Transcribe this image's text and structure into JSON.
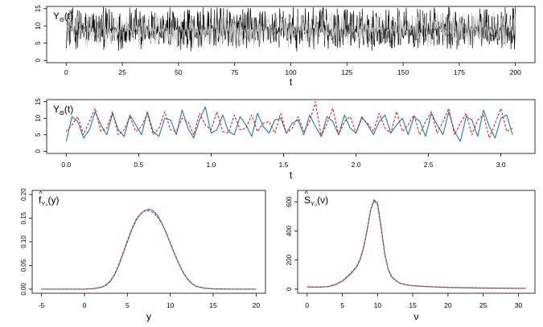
{
  "figure": {
    "panels": [
      "top",
      "middle",
      "bottom-left",
      "bottom-right"
    ]
  },
  "chart_data": [
    {
      "id": "top",
      "type": "line",
      "title_main": "Y",
      "title_sub": "Θ",
      "title_tail": "(t)",
      "xlabel": "t",
      "xlim": [
        0,
        200
      ],
      "ylim": [
        0,
        15
      ],
      "xticks": [
        0,
        25,
        50,
        75,
        100,
        125,
        150,
        175,
        200
      ],
      "yticks": [
        0,
        5,
        10,
        15
      ],
      "series": [
        {
          "color": "#000000",
          "envelope": {
            "center": 9.1,
            "low": 2.5,
            "high": 15.5
          }
        },
        {
          "color": "#c0c0c0",
          "envelope": {
            "center": 9.0,
            "low": 3.3,
            "high": 14.0
          }
        }
      ]
    },
    {
      "id": "middle",
      "type": "line",
      "title_main": "Y",
      "title_sub": "Θ",
      "title_tail": "(t)",
      "xlabel": "t",
      "xlim": [
        0,
        3.1
      ],
      "ylim": [
        0,
        15
      ],
      "xticks": [
        0.0,
        0.5,
        1.0,
        1.5,
        2.0,
        2.5,
        3.0
      ],
      "xtick_labels": [
        "0.0",
        "0.5",
        "1.0",
        "1.5",
        "2.0",
        "2.5",
        "3.0"
      ],
      "yticks": [
        0,
        5,
        10,
        15
      ],
      "series": [
        {
          "color": "#1f77b4",
          "style": "solid",
          "x": [
            0.0,
            0.04,
            0.08,
            0.12,
            0.16,
            0.2,
            0.24,
            0.28,
            0.32,
            0.36,
            0.4,
            0.44,
            0.48,
            0.52,
            0.56,
            0.6,
            0.64,
            0.68,
            0.72,
            0.76,
            0.8,
            0.84,
            0.88,
            0.92,
            0.96,
            1.0,
            1.04,
            1.08,
            1.12,
            1.16,
            1.2,
            1.24,
            1.28,
            1.32,
            1.36,
            1.4,
            1.44,
            1.48,
            1.52,
            1.56,
            1.6,
            1.64,
            1.68,
            1.72,
            1.76,
            1.8,
            1.84,
            1.88,
            1.92,
            1.96,
            2.0,
            2.04,
            2.08,
            2.12,
            2.16,
            2.2,
            2.24,
            2.28,
            2.32,
            2.36,
            2.4,
            2.44,
            2.48,
            2.52,
            2.56,
            2.6,
            2.64,
            2.68,
            2.72,
            2.76,
            2.8,
            2.84,
            2.88,
            2.92,
            2.96,
            3.0,
            3.04,
            3.08
          ],
          "y": [
            3.0,
            10.5,
            9.0,
            4.0,
            6.5,
            12.0,
            8.0,
            5.0,
            11.5,
            6.5,
            4.5,
            11.0,
            8.0,
            5.0,
            12.0,
            6.0,
            4.5,
            10.0,
            9.5,
            5.0,
            12.5,
            7.0,
            4.0,
            9.5,
            13.5,
            5.5,
            6.5,
            11.0,
            6.0,
            5.0,
            10.5,
            8.0,
            4.5,
            11.5,
            7.5,
            5.5,
            9.5,
            10.0,
            5.5,
            8.5,
            9.5,
            5.0,
            11.0,
            7.5,
            4.5,
            10.5,
            9.0,
            5.0,
            11.0,
            7.0,
            5.5,
            10.5,
            8.0,
            5.0,
            9.0,
            11.0,
            5.5,
            8.0,
            10.0,
            5.0,
            10.5,
            9.0,
            4.5,
            11.5,
            8.0,
            5.0,
            12.0,
            6.0,
            3.0,
            10.5,
            9.5,
            4.5,
            12.5,
            7.5,
            4.0,
            10.0,
            11.0,
            5.0
          ]
        },
        {
          "color": "#e41a1c",
          "style": "dashed",
          "x": [
            0.0,
            0.04,
            0.08,
            0.12,
            0.16,
            0.2,
            0.24,
            0.28,
            0.32,
            0.36,
            0.4,
            0.44,
            0.48,
            0.52,
            0.56,
            0.6,
            0.64,
            0.68,
            0.72,
            0.76,
            0.8,
            0.84,
            0.88,
            0.92,
            0.96,
            1.0,
            1.04,
            1.08,
            1.12,
            1.16,
            1.2,
            1.24,
            1.28,
            1.32,
            1.36,
            1.4,
            1.44,
            1.48,
            1.52,
            1.56,
            1.6,
            1.64,
            1.68,
            1.72,
            1.76,
            1.8,
            1.84,
            1.88,
            1.92,
            1.96,
            2.0,
            2.04,
            2.08,
            2.12,
            2.16,
            2.2,
            2.24,
            2.28,
            2.32,
            2.36,
            2.4,
            2.44,
            2.48,
            2.52,
            2.56,
            2.6,
            2.64,
            2.68,
            2.72,
            2.76,
            2.8,
            2.84,
            2.88,
            2.92,
            2.96,
            3.0,
            3.04,
            3.08
          ],
          "y": [
            6.0,
            8.0,
            10.5,
            5.0,
            9.0,
            13.0,
            6.0,
            7.0,
            12.0,
            5.0,
            6.5,
            10.5,
            6.0,
            7.5,
            11.5,
            5.0,
            7.0,
            12.0,
            6.5,
            6.0,
            10.0,
            9.0,
            5.0,
            11.5,
            8.0,
            6.5,
            12.0,
            6.0,
            5.5,
            11.0,
            6.5,
            7.0,
            11.0,
            6.0,
            8.5,
            9.0,
            5.5,
            11.5,
            5.5,
            7.0,
            10.5,
            6.0,
            9.0,
            15.0,
            4.5,
            8.5,
            13.0,
            5.0,
            9.0,
            10.5,
            5.5,
            10.0,
            8.5,
            6.0,
            11.5,
            7.0,
            5.5,
            12.0,
            6.0,
            8.0,
            11.0,
            5.0,
            9.0,
            12.0,
            5.5,
            9.0,
            13.0,
            5.0,
            8.5,
            11.5,
            5.0,
            9.5,
            11.0,
            4.0,
            8.5,
            13.0,
            6.0,
            7.0
          ]
        }
      ]
    },
    {
      "id": "bottom-left",
      "type": "line",
      "title_main": "f",
      "title_sub": "Y₀",
      "title_tail": "(y)",
      "xlabel": "y",
      "xlim": [
        -5,
        20
      ],
      "ylim": [
        0,
        0.2
      ],
      "xticks": [
        -5,
        0,
        5,
        10,
        15,
        20
      ],
      "yticks": [
        0.0,
        0.05,
        0.1,
        0.15,
        0.2
      ],
      "ytick_labels": [
        "0.00",
        "0.05",
        "0.10",
        "0.15",
        "0.20"
      ],
      "series": [
        {
          "color": "#1f77b4",
          "style": "solid",
          "x": [
            -5,
            -3,
            -1,
            0,
            1,
            2,
            2.5,
            3,
            3.5,
            4,
            4.5,
            5,
            5.5,
            6,
            6.5,
            7,
            7.5,
            8,
            8.5,
            9,
            9.5,
            10,
            10.5,
            11,
            11.5,
            12,
            12.5,
            13,
            14,
            15,
            17,
            20
          ],
          "y": [
            0,
            0,
            0,
            0,
            0.001,
            0.004,
            0.008,
            0.016,
            0.03,
            0.05,
            0.075,
            0.1,
            0.125,
            0.145,
            0.158,
            0.166,
            0.169,
            0.166,
            0.156,
            0.14,
            0.12,
            0.097,
            0.074,
            0.053,
            0.035,
            0.021,
            0.012,
            0.006,
            0.002,
            0.0005,
            0,
            0
          ]
        },
        {
          "color": "#e41a1c",
          "style": "dashed",
          "x": [
            -5,
            -3,
            -1,
            0,
            1,
            2,
            2.5,
            3,
            3.5,
            4,
            4.5,
            5,
            5.5,
            6,
            6.5,
            7,
            7.5,
            8,
            8.5,
            9,
            9.5,
            10,
            10.5,
            11,
            11.5,
            12,
            12.5,
            13,
            14,
            15,
            17,
            20
          ],
          "y": [
            0,
            0,
            0,
            0,
            0.001,
            0.004,
            0.009,
            0.017,
            0.031,
            0.052,
            0.077,
            0.102,
            0.127,
            0.147,
            0.159,
            0.165,
            0.166,
            0.162,
            0.153,
            0.139,
            0.12,
            0.098,
            0.075,
            0.054,
            0.036,
            0.022,
            0.012,
            0.006,
            0.002,
            0.0005,
            0,
            0
          ]
        }
      ]
    },
    {
      "id": "bottom-right",
      "type": "line",
      "title_main": "S",
      "title_sub": "Y₀",
      "title_tail": "(ν)",
      "xlabel": "ν",
      "xlim": [
        0,
        31
      ],
      "ylim": [
        0,
        650
      ],
      "xticks": [
        0,
        5,
        10,
        15,
        20,
        25,
        30
      ],
      "yticks": [
        0,
        200,
        400,
        600
      ],
      "series": [
        {
          "color": "#1f77b4",
          "style": "solid",
          "x": [
            0,
            1,
            2,
            3,
            4,
            5,
            6,
            7,
            7.5,
            8,
            8.5,
            9,
            9.5,
            10,
            10.5,
            11,
            11.5,
            12,
            13,
            14,
            15,
            17,
            20,
            25,
            31
          ],
          "y": [
            15,
            14,
            14,
            17,
            30,
            55,
            95,
            150,
            200,
            280,
            400,
            540,
            615,
            590,
            430,
            250,
            140,
            85,
            45,
            30,
            24,
            18,
            12,
            8,
            5
          ]
        },
        {
          "color": "#e41a1c",
          "style": "dashed",
          "x": [
            0,
            1,
            2,
            3,
            4,
            5,
            6,
            7,
            7.5,
            8,
            8.5,
            9,
            9.5,
            10,
            10.5,
            11,
            11.5,
            12,
            13,
            14,
            15,
            17,
            20,
            25,
            31
          ],
          "y": [
            16,
            15,
            15,
            18,
            32,
            58,
            100,
            155,
            205,
            285,
            405,
            545,
            605,
            580,
            420,
            245,
            135,
            82,
            44,
            29,
            23,
            17,
            11,
            7,
            5
          ]
        }
      ]
    }
  ]
}
